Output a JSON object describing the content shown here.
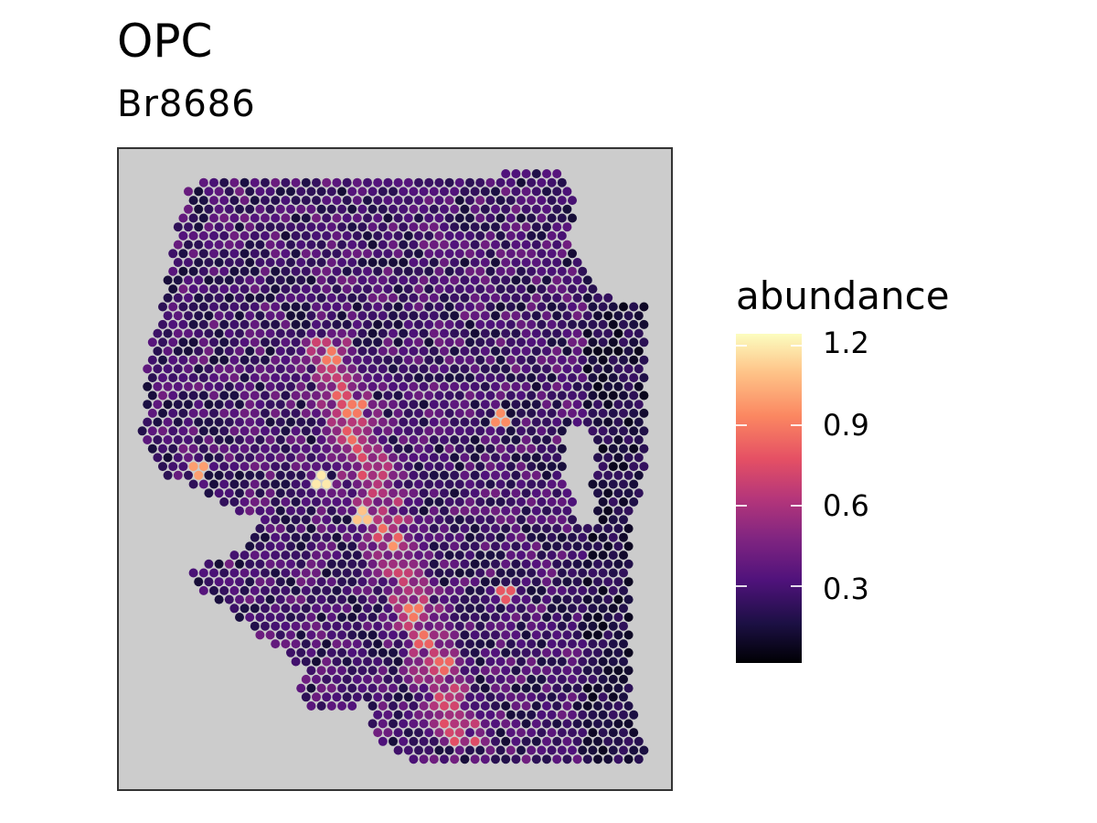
{
  "chart_data": {
    "type": "scatter",
    "title": "OPC",
    "subtitle": "Br8686",
    "color_scale": {
      "title": "abundance",
      "palette": "magma",
      "range": [
        0,
        1.25
      ],
      "ticks": [
        0.3,
        0.6,
        0.9,
        1.2
      ],
      "tick_labels": [
        "1.2",
        "0.9",
        "0.6",
        "0.3"
      ]
    },
    "panel_background": "#cccccc",
    "description": "Spatial spot map of OPC abundance per spot; most spots 0.1-0.5, hotspots up to ~1.2",
    "hotspots": [
      {
        "x": 0.37,
        "y": 0.52,
        "value": 1.2
      },
      {
        "x": 0.44,
        "y": 0.57,
        "value": 1.1
      },
      {
        "x": 0.15,
        "y": 0.5,
        "value": 1.0
      },
      {
        "x": 0.69,
        "y": 0.42,
        "value": 0.95
      },
      {
        "x": 0.39,
        "y": 0.33,
        "value": 0.9
      },
      {
        "x": 0.43,
        "y": 0.4,
        "value": 0.9
      },
      {
        "x": 0.53,
        "y": 0.72,
        "value": 0.9
      },
      {
        "x": 0.7,
        "y": 0.69,
        "value": 0.8
      },
      {
        "x": 0.59,
        "y": 0.81,
        "value": 0.85
      }
    ]
  }
}
